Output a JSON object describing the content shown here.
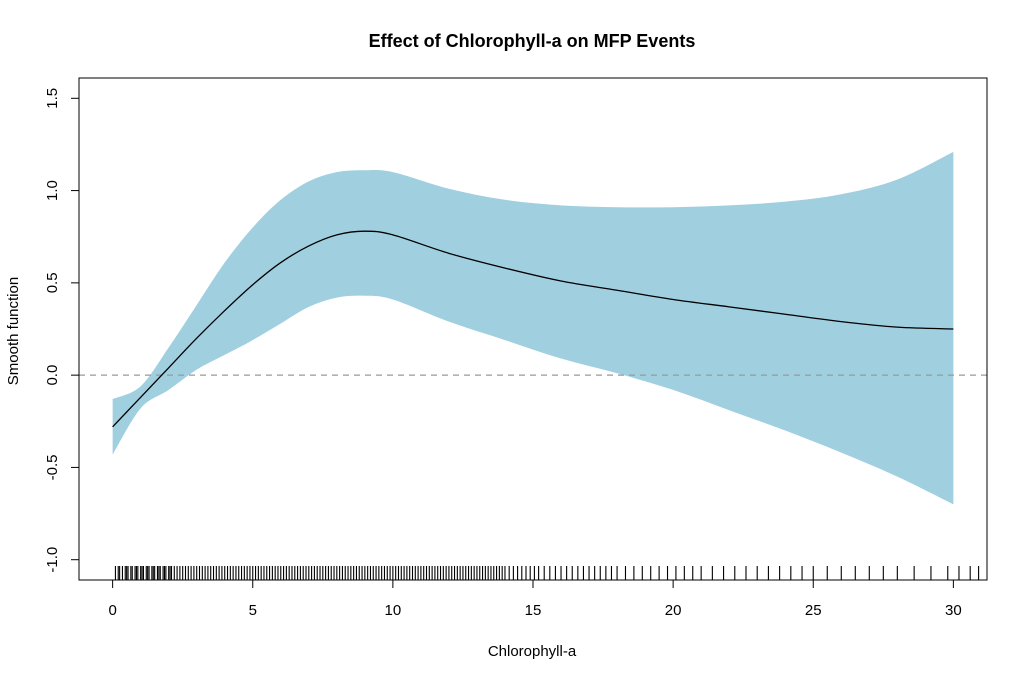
{
  "chart_data": {
    "type": "line",
    "title": "Effect of Chlorophyll-a on MFP Events",
    "xlabel": "Chlorophyll-a",
    "ylabel": "Smooth function",
    "xlim": [
      -1.2,
      31.2
    ],
    "ylim": [
      -1.11,
      1.61
    ],
    "x_ticks": [
      "0",
      "5",
      "10",
      "15",
      "20",
      "25",
      "30"
    ],
    "y_ticks": [
      "-1.0",
      "-0.5",
      "0.0",
      "0.5",
      "1.0",
      "1.5"
    ],
    "reference_line": {
      "y": 0,
      "style": "dashed",
      "color": "#999999"
    },
    "band_color": "#a0cfe0",
    "line_color": "#000000",
    "series": [
      {
        "kind": "estimate",
        "x": [
          0,
          1,
          2,
          3,
          4,
          5,
          6,
          7,
          8,
          9,
          10,
          12,
          14,
          16,
          18,
          20,
          22,
          24,
          26,
          28,
          30
        ],
        "values": [
          -0.28,
          -0.12,
          0.04,
          0.2,
          0.35,
          0.49,
          0.61,
          0.7,
          0.76,
          0.78,
          0.76,
          0.66,
          0.58,
          0.51,
          0.46,
          0.41,
          0.37,
          0.33,
          0.29,
          0.26,
          0.25
        ]
      },
      {
        "kind": "upper",
        "x": [
          0,
          1,
          2,
          3,
          4,
          5,
          6,
          7,
          8,
          9,
          10,
          12,
          14,
          16,
          18,
          20,
          22,
          24,
          26,
          28,
          30
        ],
        "values": [
          -0.13,
          -0.06,
          0.15,
          0.38,
          0.61,
          0.8,
          0.95,
          1.05,
          1.1,
          1.11,
          1.1,
          1.01,
          0.95,
          0.92,
          0.91,
          0.91,
          0.92,
          0.94,
          0.98,
          1.06,
          1.21
        ]
      },
      {
        "kind": "lower",
        "x": [
          0,
          1,
          2,
          3,
          4,
          5,
          6,
          7,
          8,
          9,
          10,
          12,
          14,
          16,
          18,
          20,
          22,
          24,
          26,
          28,
          30
        ],
        "values": [
          -0.43,
          -0.18,
          -0.08,
          0.03,
          0.11,
          0.19,
          0.28,
          0.37,
          0.42,
          0.43,
          0.41,
          0.29,
          0.19,
          0.09,
          0.01,
          -0.08,
          -0.19,
          -0.3,
          -0.42,
          -0.55,
          -0.7
        ]
      }
    ],
    "rug": [
      0.1,
      0.2,
      0.25,
      0.35,
      0.45,
      0.5,
      0.55,
      0.65,
      0.7,
      0.8,
      0.85,
      0.9,
      1.0,
      1.05,
      1.1,
      1.2,
      1.25,
      1.3,
      1.4,
      1.45,
      1.5,
      1.6,
      1.65,
      1.7,
      1.8,
      1.85,
      1.9,
      2.0,
      2.05,
      2.1,
      2.2,
      2.3,
      2.4,
      2.5,
      2.6,
      2.7,
      2.8,
      2.9,
      3.0,
      3.1,
      3.2,
      3.3,
      3.4,
      3.5,
      3.6,
      3.7,
      3.8,
      3.9,
      4.0,
      4.1,
      4.2,
      4.3,
      4.4,
      4.5,
      4.6,
      4.7,
      4.8,
      4.9,
      5.0,
      5.1,
      5.2,
      5.3,
      5.4,
      5.5,
      5.6,
      5.7,
      5.8,
      5.9,
      6.0,
      6.1,
      6.2,
      6.3,
      6.4,
      6.5,
      6.6,
      6.7,
      6.8,
      6.9,
      7.0,
      7.1,
      7.2,
      7.3,
      7.4,
      7.5,
      7.6,
      7.7,
      7.8,
      7.9,
      8.0,
      8.1,
      8.2,
      8.3,
      8.4,
      8.5,
      8.6,
      8.7,
      8.8,
      8.9,
      9.0,
      9.1,
      9.2,
      9.3,
      9.4,
      9.5,
      9.6,
      9.7,
      9.8,
      9.9,
      10.0,
      10.1,
      10.2,
      10.3,
      10.4,
      10.5,
      10.6,
      10.7,
      10.8,
      10.9,
      11.0,
      11.1,
      11.2,
      11.3,
      11.4,
      11.5,
      11.6,
      11.7,
      11.8,
      11.9,
      12.0,
      12.1,
      12.2,
      12.3,
      12.4,
      12.5,
      12.6,
      12.7,
      12.8,
      12.9,
      13.0,
      13.1,
      13.2,
      13.3,
      13.4,
      13.5,
      13.6,
      13.7,
      13.8,
      13.9,
      14.0,
      14.15,
      14.3,
      14.45,
      14.6,
      14.75,
      14.9,
      15.05,
      15.2,
      15.4,
      15.6,
      15.8,
      16.0,
      16.2,
      16.4,
      16.6,
      16.8,
      17.0,
      17.2,
      17.4,
      17.6,
      17.8,
      18.0,
      18.3,
      18.6,
      18.9,
      19.2,
      19.5,
      19.8,
      20.1,
      20.4,
      20.7,
      21.0,
      21.4,
      21.8,
      22.2,
      22.6,
      23.0,
      23.4,
      23.8,
      24.2,
      24.6,
      25.0,
      25.5,
      26.0,
      26.5,
      27.0,
      27.5,
      28.0,
      28.6,
      29.2,
      29.8,
      30.2,
      30.6,
      30.9
    ]
  }
}
